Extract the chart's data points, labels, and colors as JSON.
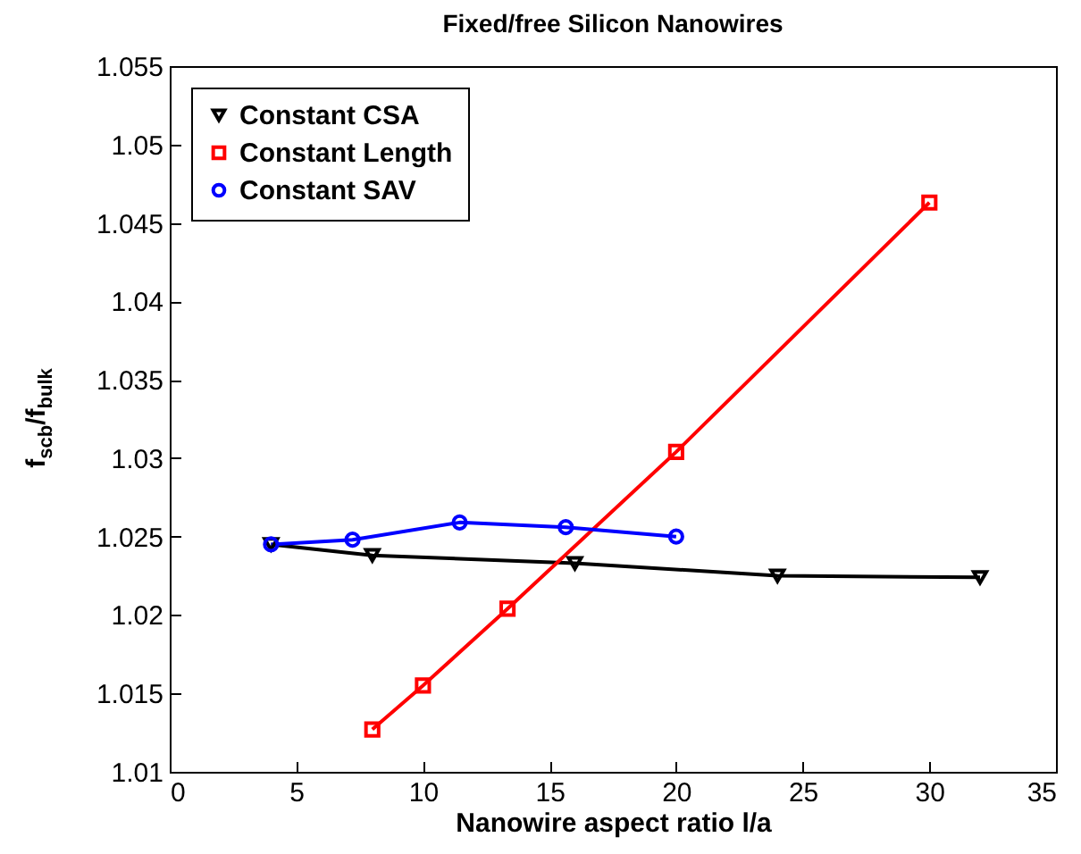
{
  "chart_data": {
    "type": "line",
    "title": "Fixed/free Silicon Nanowires",
    "xlabel": "Nanowire aspect ratio l/a",
    "ylabel": "f$_{scb}$/f$_{bulk}$",
    "xlim": [
      0,
      35
    ],
    "xticks": [
      0,
      5,
      10,
      15,
      20,
      25,
      30,
      35
    ],
    "ylim": [
      1.01,
      1.055
    ],
    "yticks": [
      1.01,
      1.015,
      1.02,
      1.025,
      1.03,
      1.035,
      1.04,
      1.045,
      1.05,
      1.055
    ],
    "grid": false,
    "legend": "top left",
    "series": [
      {
        "name": "Constant CSA",
        "color": "#000000",
        "marker": "triangle-down",
        "x": [
          4,
          8,
          16,
          24,
          32
        ],
        "values": [
          1.0245,
          1.0238,
          1.0233,
          1.0225,
          1.0224
        ]
      },
      {
        "name": "Constant Length",
        "color": "#ff0000",
        "marker": "square",
        "x": [
          8,
          10,
          13.34,
          20,
          30
        ],
        "values": [
          1.0127,
          1.0155,
          1.0204,
          1.0304,
          1.0463
        ]
      },
      {
        "name": "Constant SAV",
        "color": "#0000ff",
        "marker": "circle",
        "x": [
          4,
          7.22,
          11.45,
          15.64,
          20
        ],
        "values": [
          1.0245,
          1.0248,
          1.0259,
          1.0256,
          1.025
        ]
      }
    ]
  }
}
